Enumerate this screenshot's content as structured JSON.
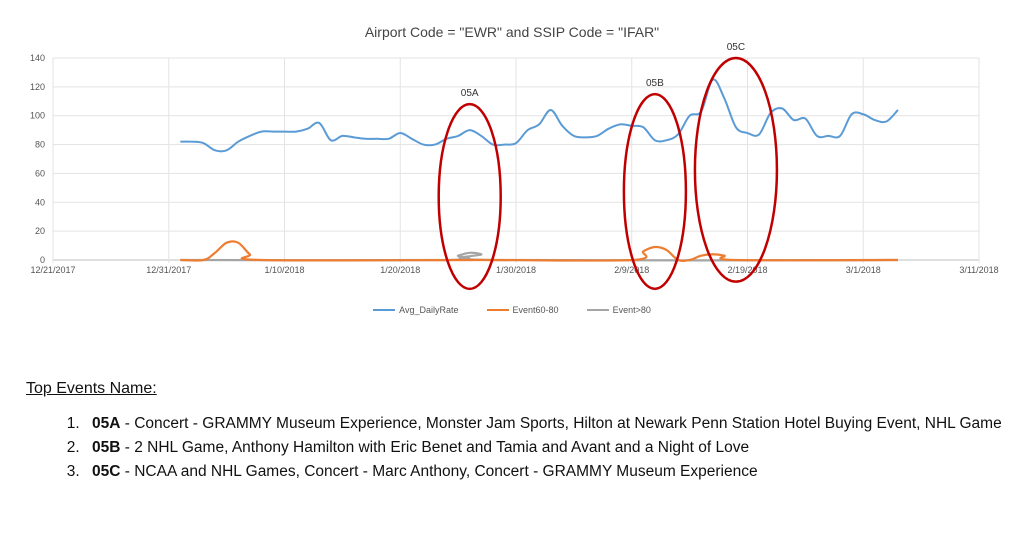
{
  "chart_data": {
    "type": "line",
    "title": "Airport Code = \"EWR\" and SSIP Code = \"IFAR\"",
    "x_ticks": [
      "12/21/2017",
      "12/31/2017",
      "1/10/2018",
      "1/20/2018",
      "1/30/2018",
      "2/9/2018",
      "2/19/2018",
      "3/1/2018",
      "3/11/2018"
    ],
    "x_range": [
      "2017-12-21",
      "2018-03-11"
    ],
    "y_ticks": [
      0,
      20,
      40,
      60,
      80,
      100,
      120,
      140
    ],
    "ylim": [
      0,
      140
    ],
    "grid": true,
    "legend_position": "bottom",
    "series": [
      {
        "name": "Avg_DailyRate",
        "color": "#5b9bd5",
        "points": [
          [
            "2018-01-01",
            82
          ],
          [
            "2018-01-02",
            82
          ],
          [
            "2018-01-03",
            81
          ],
          [
            "2018-01-04",
            76
          ],
          [
            "2018-01-05",
            76
          ],
          [
            "2018-01-06",
            82
          ],
          [
            "2018-01-07",
            86
          ],
          [
            "2018-01-08",
            89
          ],
          [
            "2018-01-09",
            89
          ],
          [
            "2018-01-10",
            89
          ],
          [
            "2018-01-11",
            89
          ],
          [
            "2018-01-12",
            91
          ],
          [
            "2018-01-13",
            95
          ],
          [
            "2018-01-14",
            83
          ],
          [
            "2018-01-15",
            86
          ],
          [
            "2018-01-16",
            85
          ],
          [
            "2018-01-17",
            84
          ],
          [
            "2018-01-18",
            84
          ],
          [
            "2018-01-19",
            84
          ],
          [
            "2018-01-20",
            88
          ],
          [
            "2018-01-21",
            84
          ],
          [
            "2018-01-22",
            80
          ],
          [
            "2018-01-23",
            80
          ],
          [
            "2018-01-24",
            84
          ],
          [
            "2018-01-25",
            86
          ],
          [
            "2018-01-26",
            90
          ],
          [
            "2018-01-27",
            86
          ],
          [
            "2018-01-28",
            80
          ],
          [
            "2018-01-29",
            80
          ],
          [
            "2018-01-30",
            81
          ],
          [
            "2018-01-31",
            90
          ],
          [
            "2018-02-01",
            94
          ],
          [
            "2018-02-02",
            104
          ],
          [
            "2018-02-03",
            93
          ],
          [
            "2018-02-04",
            86
          ],
          [
            "2018-02-05",
            85
          ],
          [
            "2018-02-06",
            86
          ],
          [
            "2018-02-07",
            91
          ],
          [
            "2018-02-08",
            94
          ],
          [
            "2018-02-09",
            93
          ],
          [
            "2018-02-10",
            92
          ],
          [
            "2018-02-11",
            83
          ],
          [
            "2018-02-12",
            83
          ],
          [
            "2018-02-13",
            87
          ],
          [
            "2018-02-14",
            100
          ],
          [
            "2018-02-15",
            103
          ],
          [
            "2018-02-16",
            125
          ],
          [
            "2018-02-17",
            112
          ],
          [
            "2018-02-18",
            92
          ],
          [
            "2018-02-19",
            88
          ],
          [
            "2018-02-20",
            87
          ],
          [
            "2018-02-21",
            102
          ],
          [
            "2018-02-22",
            105
          ],
          [
            "2018-02-23",
            97
          ],
          [
            "2018-02-24",
            98
          ],
          [
            "2018-02-25",
            86
          ],
          [
            "2018-02-26",
            86
          ],
          [
            "2018-02-27",
            86
          ],
          [
            "2018-02-28",
            101
          ],
          [
            "2018-03-01",
            101
          ],
          [
            "2018-03-02",
            97
          ],
          [
            "2018-03-03",
            96
          ],
          [
            "2018-03-04",
            104
          ]
        ]
      },
      {
        "name": "Event60-80",
        "color": "#ed7d31",
        "points": [
          [
            "2018-01-01",
            0
          ],
          [
            "2018-01-03",
            0
          ],
          [
            "2018-01-04",
            5
          ],
          [
            "2018-01-05",
            12
          ],
          [
            "2018-01-06",
            12
          ],
          [
            "2018-01-07",
            4
          ],
          [
            "2018-01-08",
            0
          ],
          [
            "2018-01-27",
            0
          ],
          [
            "2018-02-09",
            0
          ],
          [
            "2018-02-10",
            6
          ],
          [
            "2018-02-11",
            9
          ],
          [
            "2018-02-12",
            7
          ],
          [
            "2018-02-13",
            0
          ],
          [
            "2018-02-14",
            0
          ],
          [
            "2018-02-15",
            3
          ],
          [
            "2018-02-16",
            4
          ],
          [
            "2018-02-17",
            3
          ],
          [
            "2018-02-18",
            0
          ],
          [
            "2018-03-04",
            0
          ]
        ]
      },
      {
        "name": "Event>80",
        "color": "#a5a5a5",
        "points": [
          [
            "2018-01-01",
            0
          ],
          [
            "2018-01-24",
            0
          ],
          [
            "2018-01-25",
            3
          ],
          [
            "2018-01-26",
            5
          ],
          [
            "2018-01-27",
            4
          ],
          [
            "2018-01-28",
            0
          ],
          [
            "2018-03-04",
            0
          ]
        ]
      }
    ],
    "annotations": [
      {
        "label": "05A",
        "date": "2018-01-26",
        "ymin": -20,
        "ymax": 108
      },
      {
        "label": "05B",
        "date": "2018-02-11",
        "ymin": -20,
        "ymax": 115
      },
      {
        "label": "05C",
        "date": "2018-02-18",
        "ymin": -15,
        "ymax": 140
      }
    ],
    "annotation_color": "#c00000"
  },
  "events": {
    "heading": "Top Events Name:",
    "items": [
      {
        "number": "1.",
        "code": "05A",
        "text": " - Concert - GRAMMY Museum Experience, Monster Jam Sports, Hilton at Newark Penn Station Hotel Buying Event, NHL Game"
      },
      {
        "number": "2.",
        "code": "05B",
        "text": " - 2 NHL Game, Anthony Hamilton with Eric Benet and Tamia and Avant and a Night of Love"
      },
      {
        "number": "3.",
        "code": "05C",
        "text": " - NCAA and NHL Games, Concert - Marc Anthony, Concert - GRAMMY Museum Experience"
      }
    ]
  }
}
